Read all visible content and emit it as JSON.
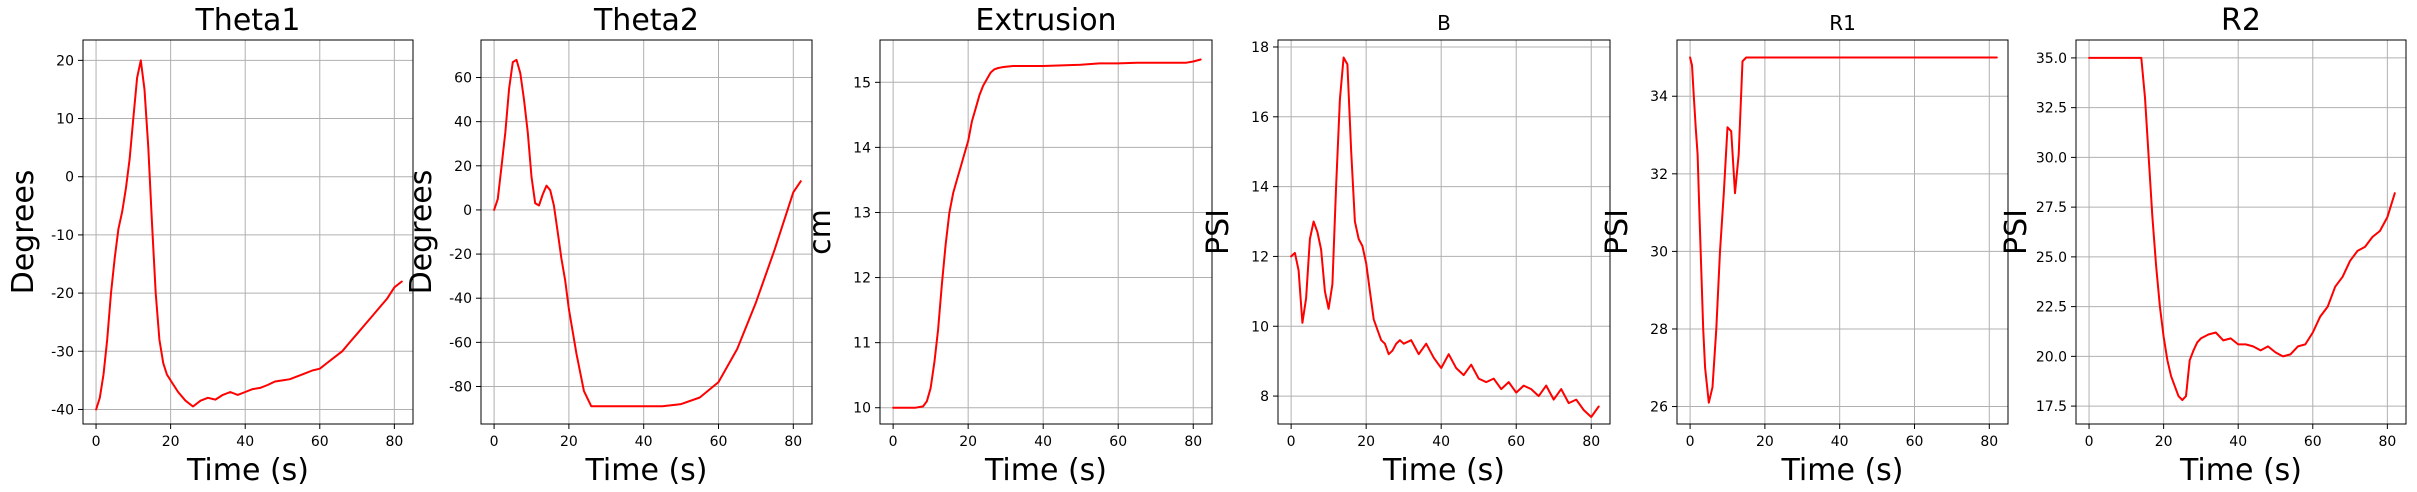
{
  "chart_data": [
    {
      "type": "line",
      "title": "Theta1",
      "xlabel": "Time (s)",
      "ylabel": "Degrees",
      "xlim": [
        -3.5,
        85
      ],
      "ylim": [
        -42.5,
        23.5
      ],
      "xticks": [
        0,
        20,
        40,
        60,
        80
      ],
      "yticks": [
        -40,
        -30,
        -20,
        -10,
        0,
        10,
        20
      ],
      "grid": true,
      "line_color": "#ff0000",
      "series": [
        {
          "x": [
            0,
            1,
            2,
            3,
            4,
            5,
            6,
            7,
            8,
            9,
            10,
            11,
            12,
            13,
            14,
            15,
            16,
            17,
            18,
            19,
            20,
            22,
            24,
            26,
            28,
            30,
            32,
            34,
            36,
            38,
            40,
            42,
            44,
            46,
            48,
            50,
            52,
            54,
            56,
            58,
            60,
            62,
            64,
            66,
            68,
            70,
            72,
            74,
            76,
            78,
            80,
            82
          ],
          "y": [
            -40,
            -38,
            -34,
            -28,
            -20,
            -14,
            -9,
            -6,
            -2,
            3,
            10,
            17,
            20,
            15,
            5,
            -8,
            -20,
            -28,
            -32,
            -34,
            -35,
            -37,
            -38.5,
            -39.5,
            -38.5,
            -38,
            -38.3,
            -37.5,
            -37,
            -37.5,
            -37,
            -36.5,
            -36.3,
            -35.8,
            -35.2,
            -35,
            -34.8,
            -34.3,
            -33.8,
            -33.3,
            -33,
            -32,
            -31,
            -30,
            -28.5,
            -27,
            -25.5,
            -24,
            -22.5,
            -21,
            -19,
            -18
          ]
        }
      ]
    },
    {
      "type": "line",
      "title": "Theta2",
      "xlabel": "Time (s)",
      "ylabel": "Degrees",
      "xlim": [
        -3.5,
        85
      ],
      "ylim": [
        -97,
        77
      ],
      "xticks": [
        0,
        20,
        40,
        60,
        80
      ],
      "yticks": [
        -80,
        -60,
        -40,
        -20,
        0,
        20,
        40,
        60
      ],
      "grid": true,
      "line_color": "#ff0000",
      "series": [
        {
          "x": [
            0,
            1,
            2,
            3,
            4,
            5,
            6,
            7,
            8,
            9,
            10,
            11,
            12,
            13,
            14,
            15,
            16,
            17,
            18,
            19,
            20,
            22,
            24,
            26,
            28,
            30,
            35,
            40,
            45,
            50,
            55,
            60,
            65,
            70,
            75,
            80,
            82
          ],
          "y": [
            0,
            5,
            20,
            35,
            55,
            67,
            68,
            62,
            50,
            35,
            15,
            3,
            2,
            7,
            11,
            9,
            2,
            -10,
            -22,
            -32,
            -45,
            -65,
            -82,
            -89,
            -89,
            -89,
            -89,
            -89,
            -89,
            -88,
            -85,
            -78,
            -63,
            -42,
            -18,
            8,
            13
          ]
        }
      ]
    },
    {
      "type": "line",
      "title": "Extrusion",
      "xlabel": "Time (s)",
      "ylabel": "cm",
      "xlim": [
        -3.5,
        85
      ],
      "ylim": [
        9.75,
        15.65
      ],
      "xticks": [
        0,
        20,
        40,
        60,
        80
      ],
      "yticks": [
        10,
        11,
        12,
        13,
        14,
        15
      ],
      "grid": true,
      "line_color": "#ff0000",
      "series": [
        {
          "x": [
            0,
            2,
            4,
            6,
            8,
            9,
            10,
            11,
            12,
            13,
            14,
            15,
            16,
            17,
            18,
            19,
            20,
            21,
            22,
            23,
            24,
            25,
            26,
            27,
            28,
            29,
            30,
            32,
            35,
            40,
            45,
            50,
            55,
            60,
            65,
            70,
            75,
            78,
            80,
            82
          ],
          "y": [
            10,
            10,
            10,
            10,
            10.02,
            10.1,
            10.3,
            10.7,
            11.2,
            11.9,
            12.5,
            13.0,
            13.3,
            13.5,
            13.7,
            13.9,
            14.1,
            14.4,
            14.6,
            14.8,
            14.95,
            15.05,
            15.15,
            15.2,
            15.22,
            15.23,
            15.24,
            15.25,
            15.25,
            15.25,
            15.26,
            15.27,
            15.29,
            15.29,
            15.3,
            15.3,
            15.3,
            15.3,
            15.32,
            15.35
          ]
        }
      ]
    },
    {
      "type": "line",
      "title": "B",
      "xlabel": "Time (s)",
      "ylabel": "PSI",
      "xlim": [
        -3.5,
        85
      ],
      "ylim": [
        7.2,
        18.2
      ],
      "xticks": [
        0,
        20,
        40,
        60,
        80
      ],
      "yticks": [
        8,
        10,
        12,
        14,
        16,
        18
      ],
      "grid": true,
      "line_color": "#ff0000",
      "series": [
        {
          "x": [
            0,
            1,
            2,
            3,
            4,
            5,
            6,
            7,
            8,
            9,
            10,
            11,
            12,
            13,
            14,
            15,
            16,
            17,
            18,
            19,
            20,
            21,
            22,
            23,
            24,
            25,
            26,
            27,
            28,
            29,
            30,
            32,
            34,
            36,
            38,
            40,
            42,
            44,
            46,
            48,
            50,
            52,
            54,
            56,
            58,
            60,
            62,
            64,
            66,
            68,
            70,
            72,
            74,
            76,
            78,
            80,
            82
          ],
          "y": [
            12,
            12.1,
            11.6,
            10.1,
            10.8,
            12.5,
            13,
            12.7,
            12.2,
            11,
            10.5,
            11.2,
            14,
            16.5,
            17.7,
            17.5,
            15,
            13,
            12.5,
            12.3,
            11.8,
            11,
            10.2,
            9.9,
            9.6,
            9.5,
            9.2,
            9.3,
            9.5,
            9.6,
            9.5,
            9.6,
            9.2,
            9.5,
            9.1,
            8.8,
            9.2,
            8.8,
            8.6,
            8.9,
            8.5,
            8.4,
            8.5,
            8.2,
            8.4,
            8.1,
            8.3,
            8.2,
            8.0,
            8.3,
            7.9,
            8.2,
            7.8,
            7.9,
            7.6,
            7.4,
            7.7
          ]
        }
      ]
    },
    {
      "type": "line",
      "title": "R1",
      "xlabel": "Time (s)",
      "ylabel": "PSI",
      "xlim": [
        -3.5,
        85
      ],
      "ylim": [
        25.55,
        35.45
      ],
      "xticks": [
        0,
        20,
        40,
        60,
        80
      ],
      "yticks": [
        26,
        28,
        30,
        32,
        34
      ],
      "grid": true,
      "line_color": "#ff0000",
      "series": [
        {
          "x": [
            0,
            0.5,
            1,
            1.5,
            2,
            2.5,
            3,
            3.5,
            4,
            5,
            6,
            7,
            8,
            9,
            10,
            11,
            12,
            13,
            14,
            15,
            16,
            20,
            30,
            40,
            50,
            60,
            70,
            80,
            82
          ],
          "y": [
            35,
            34.8,
            34,
            33.2,
            32.5,
            31,
            29.5,
            28,
            27,
            26.1,
            26.5,
            28,
            30,
            31.5,
            33.2,
            33.1,
            31.5,
            32.5,
            34.9,
            35,
            35,
            35,
            35,
            35,
            35,
            35,
            35,
            35,
            35
          ]
        }
      ]
    },
    {
      "type": "line",
      "title": "R2",
      "xlabel": "Time (s)",
      "ylabel": "PSI",
      "xlim": [
        -3.5,
        85
      ],
      "ylim": [
        16.6,
        35.9
      ],
      "xticks": [
        0,
        20,
        40,
        60,
        80
      ],
      "yticks": [
        17.5,
        20.0,
        22.5,
        25.0,
        27.5,
        30.0,
        32.5,
        35.0
      ],
      "grid": true,
      "line_color": "#ff0000",
      "series": [
        {
          "x": [
            0,
            5,
            10,
            14,
            15,
            16,
            17,
            18,
            19,
            20,
            21,
            22,
            23,
            24,
            25,
            26,
            27,
            28,
            29,
            30,
            32,
            34,
            36,
            38,
            40,
            42,
            44,
            46,
            48,
            50,
            52,
            54,
            56,
            58,
            60,
            62,
            64,
            66,
            68,
            70,
            72,
            74,
            76,
            78,
            80,
            82
          ],
          "y": [
            35,
            35,
            35,
            35,
            33,
            30,
            27,
            24.5,
            22.5,
            21,
            19.8,
            19,
            18.5,
            18,
            17.8,
            18,
            19.8,
            20.3,
            20.7,
            20.9,
            21.1,
            21.2,
            20.8,
            20.9,
            20.6,
            20.6,
            20.5,
            20.3,
            20.5,
            20.2,
            20,
            20.1,
            20.5,
            20.6,
            21.2,
            22,
            22.5,
            23.5,
            24,
            24.8,
            25.3,
            25.5,
            26,
            26.3,
            27,
            28.2
          ]
        }
      ]
    }
  ]
}
